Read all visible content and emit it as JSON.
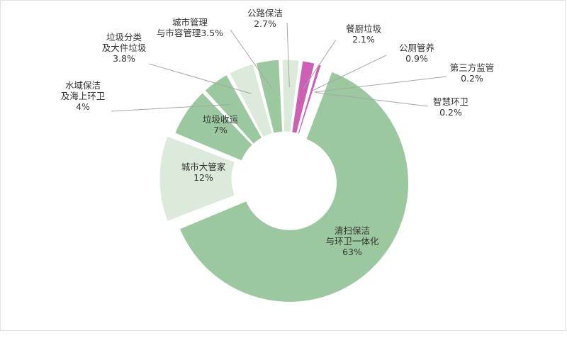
{
  "chart_data": {
    "type": "pie",
    "variant": "donut",
    "title": "",
    "slices": [
      {
        "label": "清扫保洁\n与环卫一体化",
        "value": 63,
        "value_label": "63%",
        "color": "#9cc89f",
        "label_mode": "inside",
        "exploded": true
      },
      {
        "label": "城市大管家",
        "value": 12,
        "value_label": "12%",
        "color": "#dbeadb",
        "label_mode": "inside",
        "exploded": true
      },
      {
        "label": "垃圾收运",
        "value": 7,
        "value_label": "7%",
        "color": "#9cc89f",
        "label_mode": "inside",
        "exploded": false
      },
      {
        "label": "水域保洁\n及海上环卫",
        "value": 4,
        "value_label": "4%",
        "color": "#9cc89f",
        "label_mode": "outside",
        "exploded": false
      },
      {
        "label": "垃圾分类\n及大件垃圾",
        "value": 3.8,
        "value_label": "3.8%",
        "color": "#dbeadb",
        "label_mode": "outside",
        "exploded": false
      },
      {
        "label": "城市管理\n与市容管理",
        "value": 3.5,
        "value_label": "3.5%",
        "color": "#9cc89f",
        "label_mode": "outside",
        "exploded": false
      },
      {
        "label": "公路保洁",
        "value": 2.7,
        "value_label": "2.7%",
        "color": "#dbeadb",
        "label_mode": "outside",
        "exploded": false
      },
      {
        "label": "餐厨垃圾",
        "value": 2.1,
        "value_label": "2.1%",
        "color": "#cd5fb4",
        "label_mode": "outside",
        "exploded": false
      },
      {
        "label": "公厕管养",
        "value": 0.9,
        "value_label": "0.9%",
        "color": "#cd5fb4",
        "label_mode": "outside",
        "exploded": false
      },
      {
        "label": "第三方监管",
        "value": 0.2,
        "value_label": "0.2%",
        "color": "#cd5fb4",
        "label_mode": "outside",
        "exploded": false
      },
      {
        "label": "智慧环卫",
        "value": 0.2,
        "value_label": "0.2%",
        "color": "#cd5fb4",
        "label_mode": "outside",
        "exploded": false
      }
    ],
    "legend": "none"
  }
}
